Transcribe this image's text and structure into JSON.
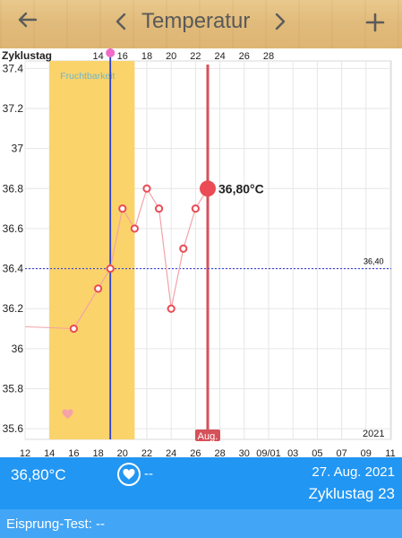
{
  "header": {
    "back_icon": "arrow-left-icon",
    "prev_icon": "chevron-left-icon",
    "title": "Temperatur",
    "next_icon": "chevron-right-icon",
    "add_icon": "plus-icon"
  },
  "chart": {
    "cycle_label": "Zyklustag",
    "fertility_label": "Fruchtbarkeit",
    "reference_label": "36,40",
    "selected_label": "36,80°C",
    "month_label": "Aug.",
    "year_label": "2021"
  },
  "chart_data": {
    "type": "line",
    "title": "",
    "x_unit": "day",
    "xlim": [
      12,
      11.0
    ],
    "ylim": [
      35.5,
      37.5
    ],
    "y_ticks": [
      "37.4",
      "37.2",
      "37",
      "36.8",
      "36.6",
      "36.4",
      "36.2",
      "36",
      "35.8",
      "35.6"
    ],
    "x_ticks": [
      "12",
      "14",
      "16",
      "18",
      "20",
      "22",
      "24",
      "26",
      "28",
      "30",
      "09/01",
      "03",
      "05",
      "07",
      "09",
      "11"
    ],
    "cycle_day_ticks": [
      "14",
      "16",
      "18",
      "20",
      "22",
      "24",
      "26",
      "28"
    ],
    "series": [
      {
        "points": [
          {
            "x": 16,
            "y": 36.1
          },
          {
            "x": 18,
            "y": 36.3
          },
          {
            "x": 19,
            "y": 36.4
          },
          {
            "x": 20,
            "y": 36.7
          },
          {
            "x": 21,
            "y": 36.6
          },
          {
            "x": 22,
            "y": 36.8
          },
          {
            "x": 23,
            "y": 36.7
          },
          {
            "x": 24,
            "y": 36.2
          },
          {
            "x": 25,
            "y": 36.5
          },
          {
            "x": 26,
            "y": 36.7
          },
          {
            "x": 27,
            "y": 36.8
          }
        ]
      }
    ],
    "reference_line": 36.4,
    "fertile_window": [
      14,
      21
    ],
    "ovulation_day": 19,
    "selected_day": 27,
    "colors": {
      "line": "#f3a3a8",
      "point": "#ea4b54",
      "fertile": "#fad36a",
      "ovulation": "#2c3fc7",
      "selected": "#d6515a",
      "reference": "#3f45dd"
    }
  },
  "status": {
    "temperature": "36,80°C",
    "heart_icon": "heart-icon",
    "intercourse_value": "--",
    "date": "27. Aug. 2021",
    "cycle_day": "Zyklustag 23",
    "ovulation_test": "Eisprung-Test: --"
  }
}
